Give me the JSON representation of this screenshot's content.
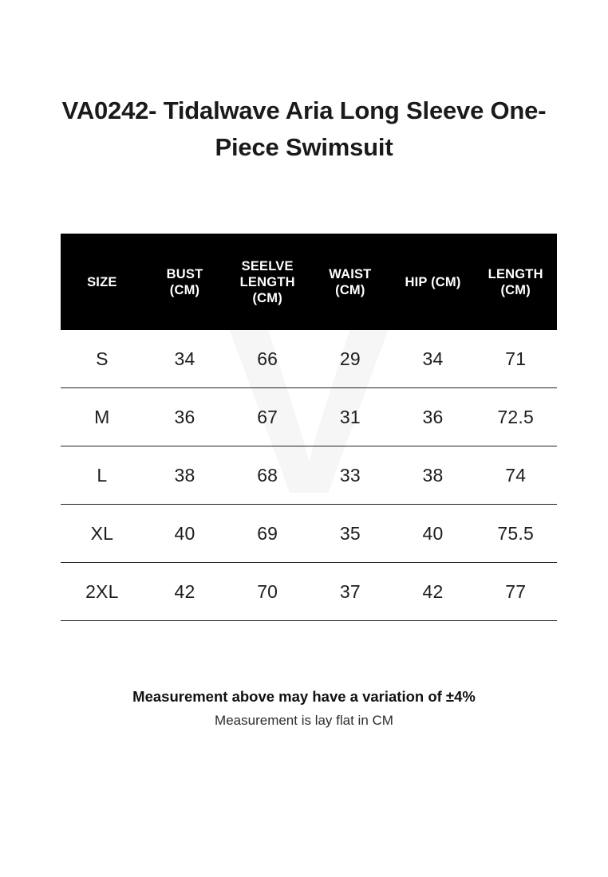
{
  "page_title": "VA0242- Tidalwave Aria Long Sleeve One-Piece Swimsuit",
  "size_chart": {
    "columns": [
      "SIZE",
      "BUST (CM)",
      "SEELVE LENGTH (CM)",
      "WAIST (CM)",
      "HIP (CM)",
      "LENGTH (CM)"
    ],
    "rows": [
      [
        "S",
        "34",
        "66",
        "29",
        "34",
        "71"
      ],
      [
        "M",
        "36",
        "67",
        "31",
        "36",
        "72.5"
      ],
      [
        "L",
        "38",
        "68",
        "33",
        "38",
        "74"
      ],
      [
        "XL",
        "40",
        "69",
        "35",
        "40",
        "75.5"
      ],
      [
        "2XL",
        "42",
        "70",
        "37",
        "42",
        "77"
      ]
    ],
    "colors": {
      "header_bg": "#000000",
      "header_text": "#ffffff",
      "row_text": "#1d1d1d",
      "row_line": "#222222"
    }
  },
  "watermark": {
    "glyph": "V",
    "color": "#f6f6f6"
  },
  "notes": {
    "variation": "Measurement above may have a variation of ±4%",
    "lay_flat": "Measurement is lay flat in CM"
  },
  "chart_data": {
    "type": "table",
    "title": "VA0242- Tidalwave Aria Long Sleeve One-Piece Swimsuit",
    "columns": [
      "SIZE",
      "BUST (CM)",
      "SEELVE LENGTH (CM)",
      "WAIST (CM)",
      "HIP (CM)",
      "LENGTH (CM)"
    ],
    "rows": [
      [
        "S",
        34,
        66,
        29,
        34,
        71
      ],
      [
        "M",
        36,
        67,
        31,
        36,
        72.5
      ],
      [
        "L",
        38,
        68,
        33,
        38,
        74
      ],
      [
        "XL",
        40,
        69,
        35,
        40,
        75.5
      ],
      [
        "2XL",
        42,
        70,
        37,
        42,
        77
      ]
    ],
    "units": "CM",
    "notes": [
      "Measurement above may have a variation of ±4%",
      "Measurement is lay flat in CM"
    ],
    "legend_position": "none",
    "grid": "horizontal-row-separators"
  }
}
